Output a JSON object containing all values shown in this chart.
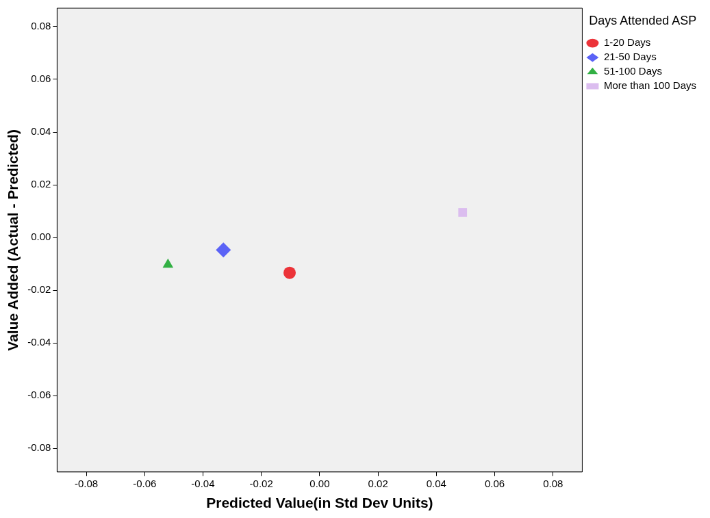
{
  "chart_data": {
    "type": "scatter",
    "xlabel": "Predicted Value(in Std Dev Units)",
    "ylabel": "Value Added (Actual - Predicted)",
    "legend_title": "Days Attended ASP",
    "legend": "top right",
    "grid": false,
    "xlim": [
      -0.09,
      0.09
    ],
    "ylim": [
      -0.089,
      0.087
    ],
    "xticks": [
      {
        "value": -0.08,
        "label": "-0.08"
      },
      {
        "value": -0.06,
        "label": "-0.06"
      },
      {
        "value": -0.04,
        "label": "-0.04"
      },
      {
        "value": -0.02,
        "label": "-0.02"
      },
      {
        "value": 0,
        "label": "0.00"
      },
      {
        "value": 0.02,
        "label": "0.02"
      },
      {
        "value": 0.04,
        "label": "0.04"
      },
      {
        "value": 0.06,
        "label": "0.06"
      },
      {
        "value": 0.08,
        "label": "0.08"
      }
    ],
    "yticks": [
      {
        "value": -0.08,
        "label": "-0.08"
      },
      {
        "value": -0.06,
        "label": "-0.06"
      },
      {
        "value": -0.04,
        "label": "-0.04"
      },
      {
        "value": -0.02,
        "label": "-0.02"
      },
      {
        "value": 0,
        "label": "0.00"
      },
      {
        "value": 0.02,
        "label": "0.02"
      },
      {
        "value": 0.04,
        "label": "0.04"
      },
      {
        "value": 0.06,
        "label": "0.06"
      },
      {
        "value": 0.08,
        "label": "0.08"
      }
    ],
    "series": [
      {
        "name": "1-20 Days",
        "color": "#ec3339",
        "marker": "circle",
        "x": [
          -0.0103
        ],
        "values": [
          -0.0134
        ]
      },
      {
        "name": "21-50 Days",
        "color": "#5b63f6",
        "marker": "diamond",
        "x": [
          -0.033
        ],
        "values": [
          -0.0047
        ]
      },
      {
        "name": "51-100 Days",
        "color": "#32b044",
        "marker": "triangle",
        "x": [
          -0.052
        ],
        "values": [
          -0.0103
        ]
      },
      {
        "name": "More than 100 Days",
        "color": "#dbbdef",
        "marker": "square",
        "x": [
          0.049
        ],
        "values": [
          0.0095
        ]
      }
    ]
  }
}
